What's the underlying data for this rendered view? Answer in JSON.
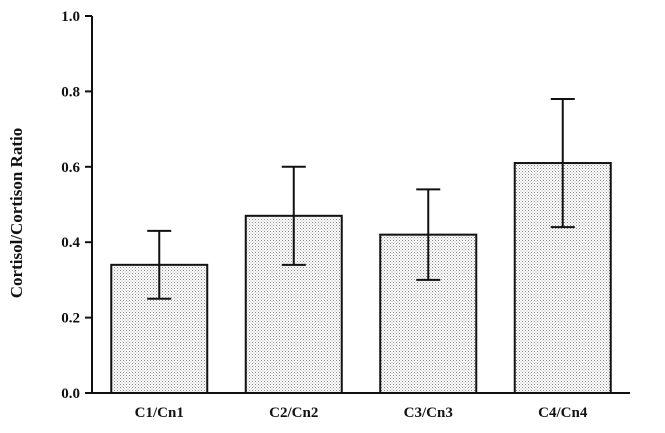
{
  "chart_data": {
    "type": "bar",
    "title": "",
    "xlabel": "",
    "ylabel": "Cortisol/Cortison Ratio",
    "ylim": [
      0,
      1.0
    ],
    "yticks": [
      "0.0",
      "0.2",
      "0.4",
      "0.6",
      "0.8",
      "1.0"
    ],
    "grid": false,
    "categories": [
      "C1/Cn1",
      "C2/Cn2",
      "C3/Cn3",
      "C4/Cn4"
    ],
    "values": [
      0.34,
      0.47,
      0.42,
      0.61
    ],
    "error_low": [
      0.25,
      0.34,
      0.3,
      0.44
    ],
    "error_high": [
      0.43,
      0.6,
      0.54,
      0.78
    ],
    "bar_fill": "#d8d8d8",
    "bar_pattern": "stippled"
  }
}
